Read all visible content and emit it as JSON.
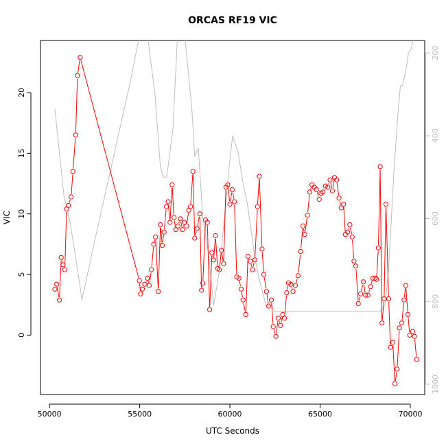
{
  "chart_data": {
    "type": "line",
    "title": "ORCAS RF19 VIC",
    "xlabel": "UTC Seconds",
    "ylabel": "VIC",
    "xlim": [
      49500,
      70800
    ],
    "ylim": [
      -4.9,
      24.3
    ],
    "x_ticks": [
      50000,
      55000,
      60000,
      65000,
      70000
    ],
    "y_ticks": [
      0,
      5,
      10,
      15,
      20
    ],
    "y2_ticks": [
      200,
      400,
      600,
      800,
      1000
    ],
    "y2lim": [
      170,
      1025
    ],
    "grid": false,
    "series": [
      {
        "role": "VIC",
        "color": "#ff0000",
        "marker": "open-circle",
        "x": [
          50300,
          50400,
          50550,
          50650,
          50750,
          50850,
          50950,
          51050,
          51200,
          51300,
          51450,
          51550,
          51700,
          54980,
          55050,
          55150,
          55280,
          55430,
          55530,
          55650,
          55780,
          55880,
          56030,
          56150,
          56250,
          56350,
          56480,
          56580,
          56680,
          56800,
          56900,
          57000,
          57120,
          57250,
          57370,
          57470,
          57600,
          57720,
          57820,
          57950,
          58050,
          58180,
          58330,
          58430,
          58500,
          58650,
          58750,
          58880,
          59000,
          59100,
          59200,
          59320,
          59420,
          59530,
          59650,
          59780,
          59880,
          60000,
          60130,
          60250,
          60380,
          60500,
          60620,
          60730,
          60880,
          61000,
          61130,
          61250,
          61380,
          61530,
          61630,
          61780,
          61880,
          62030,
          62150,
          62300,
          62400,
          62550,
          62680,
          62800,
          62930,
          63030,
          63150,
          63250,
          63380,
          63500,
          63630,
          63780,
          63920,
          64050,
          64150,
          64300,
          64430,
          64550,
          64680,
          64800,
          64950,
          65050,
          65150,
          65300,
          65430,
          65550,
          65680,
          65800,
          65920,
          66050,
          66180,
          66300,
          66400,
          66530,
          66650,
          66780,
          66880,
          66980,
          67120,
          67250,
          67400,
          67520,
          67650,
          67800,
          67920,
          68050,
          68130,
          68230,
          68330,
          68430,
          68550,
          68650,
          68800,
          68900,
          69030,
          69150,
          69270,
          69400,
          69530,
          69650,
          69750,
          69870,
          69970,
          70130,
          70230,
          70350
        ],
        "y": [
          3.8,
          4.2,
          2.9,
          6.4,
          5.8,
          5.4,
          10.4,
          10.7,
          11.4,
          13.5,
          16.5,
          21.4,
          22.9,
          4.5,
          3.4,
          3.8,
          4.2,
          4.7,
          4.1,
          5.4,
          7.5,
          8.1,
          3.6,
          9.1,
          7.4,
          8.5,
          10.6,
          11.0,
          9.3,
          12.4,
          9.7,
          8.7,
          9.0,
          9.6,
          8.7,
          9.3,
          9.0,
          10.3,
          10.6,
          13.5,
          8.0,
          8.8,
          10.0,
          3.7,
          4.3,
          9.5,
          9.3,
          2.1,
          6.8,
          6.2,
          8.2,
          5.5,
          5.4,
          7.0,
          5.9,
          12.2,
          12.4,
          10.8,
          12.0,
          11.0,
          4.8,
          4.7,
          3.8,
          2.9,
          1.7,
          6.5,
          6.1,
          5.4,
          6.2,
          10.6,
          13.1,
          7.1,
          5.0,
          3.6,
          2.4,
          2.9,
          0.7,
          -0.1,
          1.4,
          0.8,
          1.7,
          1.4,
          3.5,
          4.3,
          4.2,
          3.6,
          4.1,
          4.9,
          6.9,
          9.0,
          8.3,
          9.9,
          11.8,
          12.4,
          12.2,
          12.0,
          11.2,
          11.7,
          11.8,
          12.3,
          12.2,
          12.8,
          11.9,
          13.0,
          12.8,
          11.3,
          10.5,
          10.8,
          8.3,
          8.5,
          9.1,
          8.1,
          6.1,
          5.7,
          2.6,
          3.4,
          4.4,
          3.3,
          3.3,
          4.0,
          4.7,
          4.7,
          4.6,
          7.2,
          13.9,
          1.0,
          3.0,
          10.8,
          3.0,
          -1.0,
          -0.6,
          -4.0,
          -2.8,
          0.6,
          1.0,
          2.9,
          4.1,
          1.7,
          0.0,
          0.3,
          -0.1,
          -2.0
        ]
      },
      {
        "role": "altitude",
        "color": "#bdbdbd",
        "marker": "none",
        "x": [
          50300,
          50500,
          50800,
          51100,
          51400,
          51800,
          52500,
          53500,
          54500,
          55300,
          55550,
          55850,
          56150,
          56300,
          56500,
          56850,
          57150,
          57300,
          57500,
          57700,
          57900,
          58050,
          58250,
          58500,
          58800,
          59100,
          59400,
          59600,
          59750,
          59950,
          60150,
          60450,
          60750,
          60950,
          61150,
          61400,
          61700,
          62000,
          62300,
          62500,
          62800,
          63500,
          64500,
          65500,
          66500,
          67500,
          68000,
          68300,
          68600,
          68800,
          68950,
          69100,
          69300,
          69450,
          69550,
          69700,
          69800,
          69900,
          70050,
          70200
        ],
        "y": [
          335,
          420,
          545,
          600,
          680,
          796,
          655,
          460,
          265,
          90,
          200,
          300,
          475,
          500,
          500,
          380,
          110,
          110,
          160,
          250,
          340,
          450,
          430,
          600,
          680,
          810,
          730,
          640,
          570,
          480,
          400,
          440,
          520,
          560,
          620,
          700,
          760,
          810,
          810,
          825,
          825,
          825,
          825,
          825,
          825,
          825,
          825,
          825,
          810,
          720,
          600,
          480,
          355,
          280,
          280,
          255,
          230,
          200,
          190,
          160
        ]
      }
    ]
  }
}
